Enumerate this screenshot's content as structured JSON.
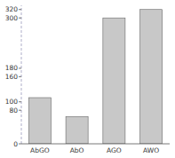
{
  "chart_data": {
    "type": "bar",
    "categories": [
      "AbGO",
      "AbO",
      "AGO",
      "AWO"
    ],
    "values": [
      110,
      65,
      300,
      320
    ],
    "color": "#c8c8c8",
    "ylim": [
      0,
      330
    ],
    "yticks": [
      0,
      80,
      100,
      160,
      180,
      300,
      320
    ],
    "grid": false
  }
}
